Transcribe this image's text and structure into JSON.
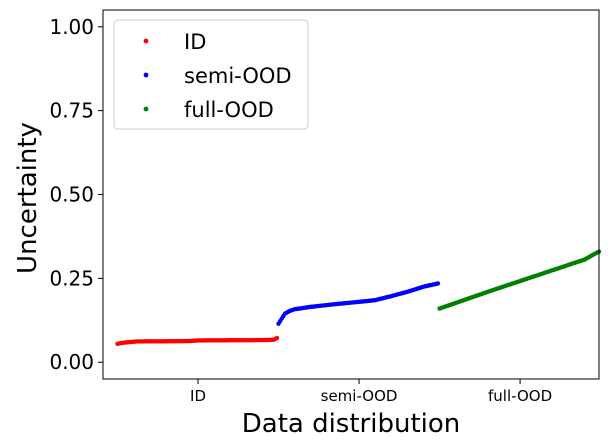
{
  "chart_data": {
    "type": "scatter",
    "xlabel": "Data distribution",
    "ylabel": "Uncertainty",
    "ylim": [
      -0.05,
      1.05
    ],
    "yticks": [
      0.0,
      0.25,
      0.5,
      0.75,
      1.0
    ],
    "ytick_labels": [
      "0.00",
      "0.25",
      "0.50",
      "0.75",
      "1.00"
    ],
    "xtick_labels": [
      "ID",
      "semi-OOD",
      "full-OOD"
    ],
    "xtick_positions": [
      50,
      150,
      250
    ],
    "xlim": [
      -9,
      299
    ],
    "grid": false,
    "legend_position": "upper-left",
    "series": [
      {
        "name": "ID",
        "color": "#ff0000",
        "x_range": [
          0,
          99
        ],
        "y_profile": [
          [
            0,
            0.055
          ],
          [
            3,
            0.058
          ],
          [
            8,
            0.06
          ],
          [
            12,
            0.062
          ],
          [
            45,
            0.063
          ],
          [
            50,
            0.065
          ],
          [
            90,
            0.066
          ],
          [
            97,
            0.067
          ],
          [
            99,
            0.072
          ]
        ]
      },
      {
        "name": "semi-OOD",
        "color": "#0000ff",
        "x_range": [
          100,
          199
        ],
        "y_profile": [
          [
            100,
            0.115
          ],
          [
            102,
            0.13
          ],
          [
            104,
            0.145
          ],
          [
            107,
            0.153
          ],
          [
            110,
            0.158
          ],
          [
            120,
            0.165
          ],
          [
            135,
            0.173
          ],
          [
            150,
            0.18
          ],
          [
            160,
            0.185
          ],
          [
            170,
            0.197
          ],
          [
            180,
            0.21
          ],
          [
            190,
            0.225
          ],
          [
            199,
            0.235
          ]
        ]
      },
      {
        "name": "full-OOD",
        "color": "#008000",
        "x_range": [
          200,
          299
        ],
        "y_profile": [
          [
            200,
            0.16
          ],
          [
            230,
            0.21
          ],
          [
            260,
            0.258
          ],
          [
            290,
            0.306
          ],
          [
            299,
            0.33
          ]
        ]
      }
    ]
  }
}
